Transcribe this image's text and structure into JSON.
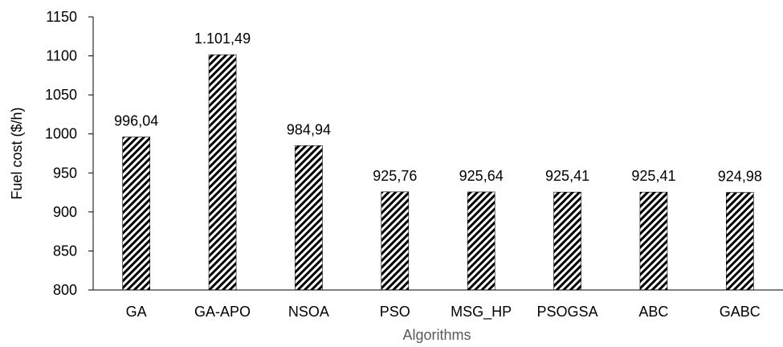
{
  "chart_data": {
    "type": "bar",
    "title": "",
    "xlabel": "Algorithms",
    "ylabel": "Fuel cost ($/h)",
    "categories": [
      "GA",
      "GA-APO",
      "NSOA",
      "PSO",
      "MSG_HP",
      "PSOGSA",
      "ABC",
      "GABC"
    ],
    "values": [
      996.04,
      1101.49,
      984.94,
      925.76,
      925.64,
      925.41,
      925.41,
      924.98
    ],
    "data_labels": [
      "996,04",
      "1.101,49",
      "984,94",
      "925,76",
      "925,64",
      "925,41",
      "925,41",
      "924,98"
    ],
    "ylim": [
      800,
      1150
    ],
    "yticks": [
      800,
      850,
      900,
      950,
      1000,
      1050,
      1100,
      1150
    ],
    "grid": false,
    "legend": "none",
    "bar_fill": "diagonal-hatch",
    "colors": {
      "bar_stroke": "#000000",
      "hatch": "#000000",
      "axis": "#000000",
      "xlabel": "#595959",
      "ylabel": "#000000"
    }
  }
}
